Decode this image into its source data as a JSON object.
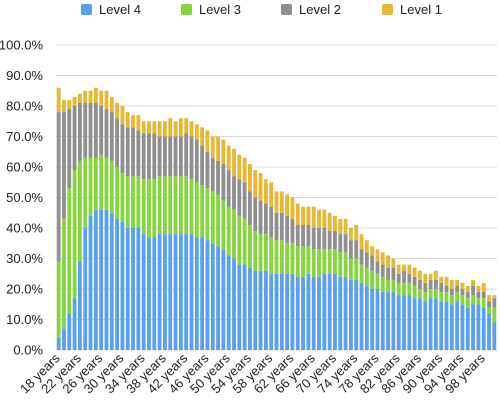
{
  "chart_data": {
    "type": "bar",
    "stacked": true,
    "title": "",
    "xlabel": "",
    "ylabel": "",
    "ylim": [
      0,
      100
    ],
    "yticks": [
      "0.0%",
      "10.0%",
      "20.0%",
      "30.0%",
      "40.0%",
      "50.0%",
      "60.0%",
      "70.0%",
      "80.0%",
      "90.0%",
      "100.0%"
    ],
    "y_unit": "%",
    "grid": true,
    "legend_position": "top",
    "xtick_labels": [
      "18 years",
      "22 years",
      "26 years",
      "30 years",
      "34 years",
      "38 years",
      "42 years",
      "46 years",
      "50 years",
      "54 years",
      "58 years",
      "62 years",
      "66 years",
      "70 years",
      "74 years",
      "78 years",
      "82 years",
      "86 years",
      "90 years",
      "94 years",
      "98 years"
    ],
    "categories": [
      "18 years",
      "19 years",
      "20 years",
      "21 years",
      "22 years",
      "23 years",
      "24 years",
      "25 years",
      "26 years",
      "27 years",
      "28 years",
      "29 years",
      "30 years",
      "31 years",
      "32 years",
      "33 years",
      "34 years",
      "35 years",
      "36 years",
      "37 years",
      "38 years",
      "39 years",
      "40 years",
      "41 years",
      "42 years",
      "43 years",
      "44 years",
      "45 years",
      "46 years",
      "47 years",
      "48 years",
      "49 years",
      "50 years",
      "51 years",
      "52 years",
      "53 years",
      "54 years",
      "55 years",
      "56 years",
      "57 years",
      "58 years",
      "59 years",
      "60 years",
      "61 years",
      "62 years",
      "63 years",
      "64 years",
      "65 years",
      "66 years",
      "67 years",
      "68 years",
      "69 years",
      "70 years",
      "71 years",
      "72 years",
      "73 years",
      "74 years",
      "75 years",
      "76 years",
      "77 years",
      "78 years",
      "79 years",
      "80 years",
      "81 years",
      "82 years",
      "83 years",
      "84 years",
      "85 years",
      "86 years",
      "87 years",
      "88 years",
      "89 years",
      "90 years",
      "91 years",
      "92 years",
      "93 years",
      "94 years",
      "95 years",
      "96 years",
      "97 years",
      "98 years",
      "99 years",
      "100 years"
    ],
    "series": [
      {
        "name": "Level 4",
        "color": "#5aa0f0",
        "values": [
          4,
          7,
          12,
          17,
          29,
          40,
          44,
          46,
          46,
          46,
          45,
          43,
          42,
          40,
          40,
          40,
          38,
          37,
          37,
          38,
          38,
          38,
          38,
          38,
          38,
          38,
          37,
          37,
          36,
          35,
          34,
          33,
          31,
          30,
          28,
          28,
          27,
          26,
          26,
          26,
          25,
          25,
          25,
          25,
          25,
          24,
          24,
          25,
          24,
          24,
          25,
          25,
          25,
          24,
          24,
          23,
          23,
          22,
          21,
          20,
          20,
          19,
          19,
          19,
          18,
          18,
          18,
          17,
          17,
          16,
          17,
          17,
          16,
          16,
          15,
          16,
          15,
          14,
          15,
          15,
          14,
          12,
          9
        ]
      },
      {
        "name": "Level 3",
        "color": "#86d540",
        "values": [
          25,
          36,
          41,
          42,
          33,
          23,
          19,
          17,
          18,
          17,
          17,
          17,
          16,
          17,
          17,
          17,
          18,
          19,
          19,
          19,
          19,
          19,
          19,
          19,
          19,
          18,
          18,
          17,
          17,
          17,
          17,
          16,
          16,
          16,
          16,
          15,
          14,
          13,
          12,
          12,
          12,
          11,
          11,
          10,
          10,
          10,
          10,
          9,
          9,
          9,
          8,
          8,
          8,
          8,
          8,
          7,
          7,
          6,
          6,
          6,
          5,
          5,
          4,
          4,
          4,
          4,
          4,
          4,
          3,
          3,
          3,
          3,
          3,
          3,
          3,
          3,
          3,
          3,
          3,
          2,
          3,
          2,
          5
        ]
      },
      {
        "name": "Level 2",
        "color": "#8f8f8f",
        "values": [
          49,
          35,
          26,
          21,
          19,
          18,
          18,
          18,
          16,
          16,
          16,
          16,
          16,
          16,
          16,
          15,
          15,
          15,
          15,
          13,
          13,
          13,
          13,
          13,
          14,
          14,
          14,
          13,
          12,
          11,
          11,
          12,
          12,
          11,
          12,
          12,
          11,
          11,
          11,
          10,
          10,
          9,
          9,
          9,
          8,
          7,
          7,
          7,
          7,
          7,
          7,
          6,
          6,
          6,
          6,
          6,
          6,
          5,
          5,
          5,
          4,
          4,
          4,
          4,
          3,
          4,
          3,
          3,
          3,
          3,
          3,
          3,
          3,
          2,
          2,
          2,
          2,
          2,
          3,
          2,
          2,
          2,
          3
        ]
      },
      {
        "name": "Level 1",
        "color": "#e8b735",
        "values": [
          8,
          4,
          3,
          3,
          3,
          4,
          4,
          5,
          5,
          6,
          5,
          5,
          6,
          5,
          4,
          5,
          4,
          4,
          4,
          5,
          5,
          6,
          5,
          6,
          5,
          5,
          5,
          6,
          7,
          7,
          8,
          8,
          8,
          9,
          8,
          8,
          9,
          9,
          9,
          8,
          8,
          7,
          7,
          7,
          7,
          7,
          6,
          6,
          7,
          6,
          6,
          6,
          5,
          5,
          5,
          4,
          5,
          5,
          4,
          3,
          4,
          4,
          4,
          3,
          3,
          2,
          3,
          3,
          3,
          3,
          2,
          3,
          2,
          3,
          3,
          2,
          2,
          2,
          2,
          2,
          3,
          2,
          1
        ]
      }
    ]
  }
}
